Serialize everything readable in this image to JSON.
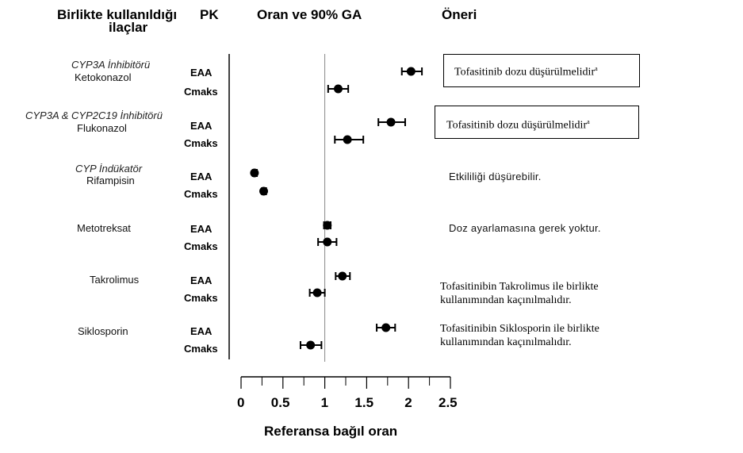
{
  "headers": {
    "drugs": "Birlikte kullanıldığı ilaçlar",
    "drugs_line1": "Birlikte kullanıldığı",
    "drugs_line2": "ilaçlar",
    "pk": "PK",
    "ratio": "Oran ve 90% GA",
    "recommendation": "Öneri"
  },
  "groups": [
    {
      "class": "CYP3A İnhibitörü",
      "drug": "Ketokonazol",
      "recommendation": "Tofasitinib dozu düşürülmelidir",
      "sup": "a",
      "boxed": true
    },
    {
      "class": "CYP3A & CYP2C19 İnhibitörü",
      "drug": "Flukonazol",
      "recommendation": "Tofasitinib dozu düşürülmelidir",
      "sup": "a",
      "boxed": true
    },
    {
      "class": "CYP İndükatör",
      "drug": "Rifampisin",
      "recommendation": "Etkililiği düşürebilir.",
      "boxed": false
    },
    {
      "class": "",
      "drug": "Metotreksat",
      "recommendation": "Doz ayarlamasına gerek yoktur.",
      "boxed": false
    },
    {
      "class": "",
      "drug": "Takrolimus",
      "recommendation_line1": "Tofasitinibin Takrolimus ile birlikte",
      "recommendation_line2": "kullanımından kaçınılmalıdır.",
      "boxed": false
    },
    {
      "class": "",
      "drug": "Siklosporin",
      "recommendation_line1": "Tofasitinibin Siklosporin ile birlikte",
      "recommendation_line2": "kullanımından kaçınılmalıdır.",
      "boxed": false
    }
  ],
  "pk_labels": {
    "auc": "EAA",
    "cmax": "Cmaks"
  },
  "chart_data": {
    "type": "scatter",
    "subtype": "forest-plot",
    "xlabel": "Referansa bağıl oran",
    "xlim": [
      0,
      2.5
    ],
    "xticks": [
      0,
      0.5,
      1,
      1.5,
      2,
      2.5
    ],
    "xtick_labels": [
      "0",
      "0.5",
      "1",
      "1.5",
      "2",
      "2.5"
    ],
    "reference_line": 1,
    "rows": [
      {
        "drug": "Ketokonazol",
        "pk": "EAA",
        "ratio": 2.03,
        "lo": 1.92,
        "hi": 2.16
      },
      {
        "drug": "Ketokonazol",
        "pk": "Cmaks",
        "ratio": 1.16,
        "lo": 1.04,
        "hi": 1.28
      },
      {
        "drug": "Flukonazol",
        "pk": "EAA",
        "ratio": 1.79,
        "lo": 1.64,
        "hi": 1.96
      },
      {
        "drug": "Flukonazol",
        "pk": "Cmaks",
        "ratio": 1.27,
        "lo": 1.12,
        "hi": 1.46
      },
      {
        "drug": "Rifampisin",
        "pk": "EAA",
        "ratio": 0.16,
        "lo": 0.14,
        "hi": 0.19
      },
      {
        "drug": "Rifampisin",
        "pk": "Cmaks",
        "ratio": 0.27,
        "lo": 0.25,
        "hi": 0.3
      },
      {
        "drug": "Metotreksat",
        "pk": "EAA",
        "ratio": 1.03,
        "lo": 0.99,
        "hi": 1.07
      },
      {
        "drug": "Metotreksat",
        "pk": "Cmaks",
        "ratio": 1.03,
        "lo": 0.92,
        "hi": 1.14
      },
      {
        "drug": "Takrolimus",
        "pk": "EAA",
        "ratio": 1.21,
        "lo": 1.13,
        "hi": 1.3
      },
      {
        "drug": "Takrolimus",
        "pk": "Cmaks",
        "ratio": 0.91,
        "lo": 0.82,
        "hi": 1.0
      },
      {
        "drug": "Siklosporin",
        "pk": "EAA",
        "ratio": 1.73,
        "lo": 1.62,
        "hi": 1.84
      },
      {
        "drug": "Siklosporin",
        "pk": "Cmaks",
        "ratio": 0.83,
        "lo": 0.71,
        "hi": 0.96
      }
    ]
  }
}
